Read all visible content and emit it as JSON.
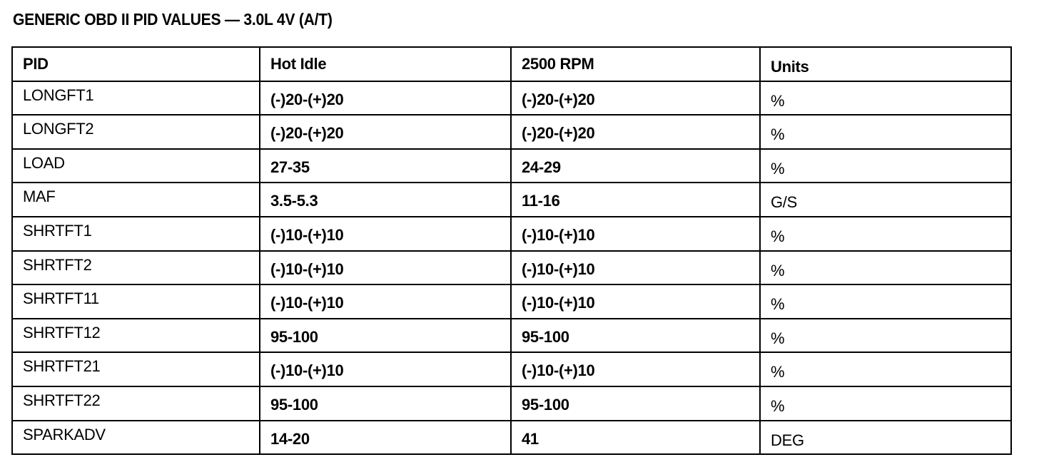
{
  "title": "GENERIC OBD II PID VALUES — 3.0L 4V (A/T)",
  "table": {
    "headers": [
      "PID",
      "Hot Idle",
      "2500 RPM",
      "Units"
    ],
    "rows": [
      [
        "LONGFT1",
        "(-)20-(+)20",
        "(-)20-(+)20",
        "%"
      ],
      [
        "LONGFT2",
        "(-)20-(+)20",
        "(-)20-(+)20",
        "%"
      ],
      [
        "LOAD",
        "27-35",
        "24-29",
        "%"
      ],
      [
        "MAF",
        "3.5-5.3",
        "11-16",
        "G/S"
      ],
      [
        "SHRTFT1",
        "(-)10-(+)10",
        "(-)10-(+)10",
        "%"
      ],
      [
        "SHRTFT2",
        "(-)10-(+)10",
        "(-)10-(+)10",
        "%"
      ],
      [
        "SHRTFT11",
        "(-)10-(+)10",
        "(-)10-(+)10",
        "%"
      ],
      [
        "SHRTFT12",
        "95-100",
        "95-100",
        "%"
      ],
      [
        "SHRTFT21",
        "(-)10-(+)10",
        "(-)10-(+)10",
        "%"
      ],
      [
        "SHRTFT22",
        "95-100",
        "95-100",
        "%"
      ],
      [
        "SPARKADV",
        "14-20",
        "41",
        "DEG"
      ]
    ]
  }
}
